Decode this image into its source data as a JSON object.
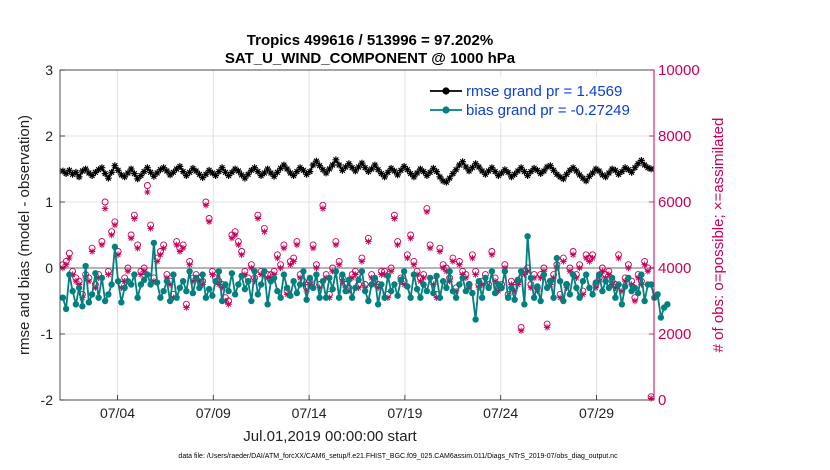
{
  "chart_data": {
    "type": "line",
    "title_line1": "Tropics 499616 / 513996 = 97.202%",
    "title_line2": "SAT_U_WIND_COMPONENT @ 1000 hPa",
    "xlabel": "Jul.01,2019 00:00:00 start",
    "ylabel_left": "rmse and bias (model - observation)",
    "ylabel_right": "# of obs: o=possible; ×=assimilated",
    "ylim_left": [
      -2,
      3
    ],
    "ylim_right": [
      0,
      10000
    ],
    "yticks_left": [
      "3",
      "2",
      "1",
      "0",
      "-1",
      "-2"
    ],
    "yticks_right": [
      "10000",
      "8000",
      "6000",
      "4000",
      "2000",
      "0"
    ],
    "xticks": [
      "07/04",
      "07/09",
      "07/14",
      "07/19",
      "07/24",
      "07/29"
    ],
    "xtick_days": [
      3,
      8,
      13,
      18,
      23,
      28
    ],
    "xlim_days": [
      0,
      31
    ],
    "grid": true,
    "legend": {
      "position": "top-right",
      "entries": [
        "rmse grand pr = 1.4569",
        "bias grand pr = -0.27249"
      ]
    },
    "series": [
      {
        "name": "rmse",
        "color": "#000000",
        "marker": "asterisk",
        "values": [
          1.47,
          1.43,
          1.48,
          1.42,
          1.45,
          1.38,
          1.47,
          1.5,
          1.44,
          1.4,
          1.45,
          1.49,
          1.52,
          1.43,
          1.36,
          1.45,
          1.55,
          1.48,
          1.41,
          1.38,
          1.44,
          1.5,
          1.43,
          1.35,
          1.4,
          1.46,
          1.52,
          1.45,
          1.39,
          1.44,
          1.49,
          1.52,
          1.47,
          1.41,
          1.45,
          1.5,
          1.54,
          1.46,
          1.4,
          1.45,
          1.51,
          1.47,
          1.42,
          1.37,
          1.42,
          1.48,
          1.44,
          1.4,
          1.46,
          1.52,
          1.45,
          1.4,
          1.45,
          1.5,
          1.47,
          1.41,
          1.36,
          1.42,
          1.48,
          1.52,
          1.46,
          1.4,
          1.44,
          1.5,
          1.44,
          1.39,
          1.45,
          1.51,
          1.56,
          1.5,
          1.44,
          1.4,
          1.46,
          1.52,
          1.48,
          1.42,
          1.46,
          1.56,
          1.62,
          1.55,
          1.49,
          1.44,
          1.5,
          1.56,
          1.64,
          1.56,
          1.48,
          1.53,
          1.58,
          1.52,
          1.47,
          1.53,
          1.59,
          1.52,
          1.46,
          1.5,
          1.56,
          1.49,
          1.43,
          1.38,
          1.45,
          1.51,
          1.47,
          1.41,
          1.48,
          1.54,
          1.49,
          1.43,
          1.38,
          1.44,
          1.5,
          1.46,
          1.4,
          1.45,
          1.51,
          1.46,
          1.38,
          1.32,
          1.3,
          1.36,
          1.43,
          1.49,
          1.56,
          1.61,
          1.53,
          1.47,
          1.52,
          1.58,
          1.53,
          1.47,
          1.42,
          1.47,
          1.52,
          1.46,
          1.4,
          1.44,
          1.49,
          1.45,
          1.38,
          1.42,
          1.47,
          1.52,
          1.46,
          1.4,
          1.46,
          1.51,
          1.48,
          1.43,
          1.47,
          1.53,
          1.55,
          1.48,
          1.42,
          1.38,
          1.35,
          1.42,
          1.48,
          1.52,
          1.47,
          1.41,
          1.36,
          1.32,
          1.39,
          1.44,
          1.5,
          1.47,
          1.41,
          1.38,
          1.44,
          1.5,
          1.48,
          1.42,
          1.46,
          1.52,
          1.49,
          1.45,
          1.52,
          1.58,
          1.63,
          1.56,
          1.52,
          1.5
        ]
      },
      {
        "name": "bias",
        "color": "#00807f",
        "marker": "circle",
        "values": [
          -0.45,
          -0.62,
          -0.1,
          -0.35,
          -0.55,
          -0.3,
          -0.58,
          0.03,
          -0.52,
          -0.4,
          -0.08,
          -0.45,
          -0.15,
          -0.5,
          -0.4,
          -0.25,
          0.32,
          -0.2,
          -0.52,
          -0.3,
          -0.2,
          -0.25,
          -0.1,
          -0.45,
          -0.25,
          -0.18,
          -0.1,
          -0.25,
          0.38,
          -0.22,
          -0.45,
          -0.35,
          -0.2,
          -0.5,
          -0.1,
          -0.45,
          -0.3,
          -0.2,
          -0.35,
          -0.05,
          -0.38,
          -0.15,
          -0.3,
          -0.1,
          -0.45,
          -0.32,
          -0.42,
          -0.2,
          -0.05,
          -0.5,
          -0.25,
          -0.35,
          -0.08,
          -0.4,
          -0.25,
          -0.12,
          -0.32,
          -0.2,
          -0.5,
          -0.05,
          -0.4,
          -0.25,
          -0.05,
          -0.55,
          -0.2,
          -0.15,
          -0.35,
          -0.45,
          -0.1,
          -0.3,
          -0.42,
          -0.2,
          -0.38,
          -0.25,
          -0.05,
          -0.48,
          -0.15,
          -0.3,
          -0.1,
          -0.45,
          -0.2,
          -0.45,
          -0.15,
          -0.32,
          -0.05,
          -0.45,
          -0.1,
          -0.35,
          -0.18,
          -0.45,
          -0.3,
          -0.18,
          -0.05,
          -0.35,
          -0.5,
          -0.25,
          -0.15,
          -0.55,
          -0.25,
          -0.45,
          -0.12,
          -0.35,
          -0.25,
          -0.42,
          -0.18,
          -0.05,
          -0.28,
          -0.45,
          -0.1,
          -0.32,
          -0.45,
          -0.25,
          -0.35,
          -0.15,
          -0.38,
          -0.12,
          -0.45,
          -0.2,
          -0.3,
          -0.05,
          -0.35,
          -0.45,
          -0.25,
          -0.15,
          -0.35,
          -0.25,
          -0.38,
          -0.78,
          -0.2,
          -0.45,
          -0.15,
          -0.3,
          -0.05,
          -0.38,
          -0.25,
          -0.3,
          -0.05,
          -0.45,
          -0.3,
          -0.48,
          -0.18,
          -0.05,
          -0.55,
          0.48,
          -0.15,
          -0.45,
          -0.28,
          -0.5,
          -0.1,
          -0.3,
          -0.2,
          -0.45,
          0.15,
          -0.2,
          -0.5,
          -0.25,
          -0.4,
          -0.1,
          -0.3,
          -0.45,
          -0.2,
          -0.1,
          -0.3,
          -0.4,
          -0.22,
          -0.1,
          -0.35,
          -0.2,
          -0.3,
          -0.15,
          -0.45,
          -0.25,
          -0.55,
          -0.28,
          -0.15,
          -0.35,
          -0.3,
          -0.38,
          -0.1,
          -0.5,
          -0.25,
          -0.25,
          -0.45,
          -0.4,
          -0.75,
          -0.6,
          -0.55
        ]
      },
      {
        "name": "obs possible",
        "axis": "right",
        "color": "#c8005a",
        "marker": "circle-open",
        "values": [
          4100,
          4200,
          4450,
          3900,
          3700,
          3600,
          3200,
          3800,
          3700,
          4600,
          3500,
          3800,
          4800,
          6000,
          3900,
          5100,
          5400,
          4500,
          3500,
          3700,
          4000,
          5000,
          5600,
          4700,
          3900,
          4000,
          6500,
          5300,
          3700,
          4300,
          4500,
          4700,
          3800,
          3600,
          3200,
          4800,
          4600,
          4700,
          2900,
          4200,
          3700,
          3800,
          3700,
          3600,
          6000,
          5500,
          3900,
          3700,
          3600,
          3500,
          3100,
          3000,
          5000,
          5100,
          4800,
          4500,
          3900,
          3700,
          4100,
          3700,
          5600,
          3900,
          5200,
          3800,
          3800,
          3900,
          4400,
          4100,
          4700,
          3300,
          4200,
          4300,
          4800,
          3800,
          3600,
          3400,
          3600,
          4700,
          4100,
          3500,
          5900,
          3800,
          3200,
          4000,
          4800,
          4200,
          3700,
          3500,
          3400,
          3800,
          3900,
          3500,
          4300,
          3500,
          4900,
          3800,
          3600,
          3500,
          3900,
          3900,
          3200,
          4000,
          5600,
          4800,
          3700,
          3600,
          4400,
          5000,
          4200,
          3900,
          3700,
          3800,
          5800,
          4700,
          3600,
          3200,
          4600,
          4100,
          4000,
          3700,
          4300,
          3400,
          4200,
          3900,
          3800,
          3500,
          4400,
          3900,
          3500,
          3600,
          3800,
          3500,
          4500,
          3700,
          3400,
          3500,
          4100,
          3200,
          3600,
          3400,
          3600,
          2200,
          3900,
          4000,
          3500,
          3800,
          3400,
          3800,
          4000,
          2300,
          3600,
          3800,
          4100,
          3200,
          4300,
          3500,
          4000,
          4500,
          3800,
          4100,
          3300,
          4400,
          4300,
          4400,
          3500,
          3700,
          4000,
          3800,
          3900,
          3600,
          3500,
          4400,
          3400,
          3700,
          4100,
          3600,
          3100,
          3800,
          3600,
          4200,
          4000,
          100
        ]
      },
      {
        "name": "obs assimilated",
        "axis": "right",
        "color": "#c8005a",
        "marker": "asterisk",
        "values": [
          4000,
          4100,
          4300,
          3800,
          3600,
          3500,
          3100,
          3700,
          3600,
          4500,
          3400,
          3700,
          4700,
          5800,
          3800,
          5000,
          5300,
          4400,
          3400,
          3600,
          3900,
          4900,
          5500,
          4600,
          3800,
          3900,
          6300,
          5200,
          3600,
          4200,
          4400,
          4600,
          3700,
          3500,
          3100,
          4700,
          4500,
          4600,
          2800,
          4100,
          3600,
          3700,
          3600,
          3500,
          5900,
          5400,
          3800,
          3600,
          3500,
          3400,
          3000,
          2900,
          4900,
          5000,
          4700,
          4400,
          3800,
          3600,
          4000,
          3600,
          5500,
          3800,
          5100,
          3700,
          3700,
          3800,
          4300,
          4000,
          4600,
          3200,
          4100,
          4200,
          4700,
          3700,
          3500,
          3300,
          3500,
          4600,
          4000,
          3400,
          5800,
          3700,
          3100,
          3900,
          4700,
          4100,
          3600,
          3400,
          3300,
          3700,
          3800,
          3400,
          4200,
          3400,
          4800,
          3700,
          3500,
          3400,
          3800,
          3800,
          3100,
          3900,
          5500,
          4700,
          3600,
          3500,
          4300,
          4900,
          4100,
          3800,
          3600,
          3700,
          5700,
          4600,
          3500,
          3100,
          4500,
          4000,
          3900,
          3600,
          4200,
          3300,
          4100,
          3800,
          3700,
          3400,
          4300,
          3800,
          3400,
          3500,
          3700,
          3400,
          4400,
          3600,
          3300,
          3400,
          4000,
          3100,
          3500,
          3300,
          3500,
          2100,
          3800,
          3900,
          3400,
          3700,
          3300,
          3700,
          3900,
          2200,
          3500,
          3700,
          4000,
          3100,
          4200,
          3400,
          3900,
          4400,
          3700,
          4000,
          3200,
          4300,
          4200,
          4300,
          3400,
          3600,
          3900,
          3700,
          3800,
          3500,
          3400,
          4300,
          3300,
          3600,
          4000,
          3500,
          3000,
          3700,
          3500,
          4100,
          3900,
          50
        ]
      }
    ]
  },
  "footnote": "data file: /Users/raeder/DAI/ATM_forcXX/CAM6_setup/f.e21.FHIST_BGC.f09_025.CAM6assim.011/Diags_NTrS_2019-07/obs_diag_output.nc"
}
